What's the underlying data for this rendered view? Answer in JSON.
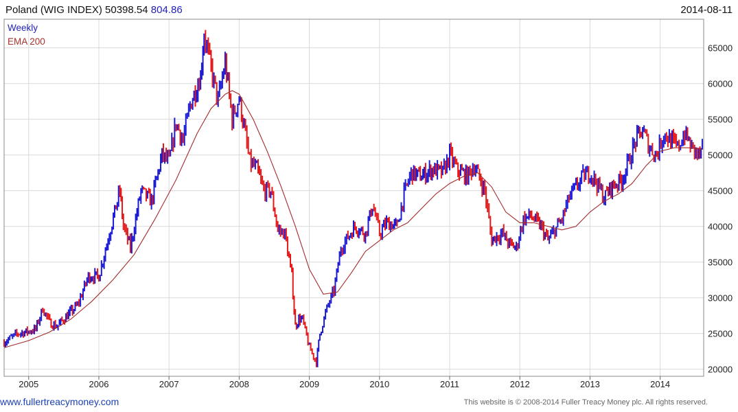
{
  "header": {
    "title": "Poland (WIG INDEX) 50398.54",
    "change": "804.86",
    "date": "2014-08-11"
  },
  "legend": {
    "weekly": "Weekly",
    "ema": "EMA 200"
  },
  "footer": {
    "link": "www.fullertreacymoney.com",
    "copyright": "This website is © 2008-2014 Fuller Treacy Money plc. All rights reserved."
  },
  "colors": {
    "up": "#1a1ad6",
    "down": "#e41818",
    "ema": "#a52a2a",
    "grid": "#d9d9d9",
    "frame": "#888888"
  },
  "chart_data": {
    "type": "line",
    "title": "Poland (WIG INDEX) 50398.54",
    "xlabel": "",
    "ylabel": "",
    "x_range": [
      2004.65,
      2014.62
    ],
    "ylim": [
      19000,
      69000
    ],
    "y_ticks": [
      20000,
      25000,
      30000,
      35000,
      40000,
      45000,
      50000,
      55000,
      60000,
      65000
    ],
    "x_ticks": [
      "2005",
      "2006",
      "2007",
      "2008",
      "2009",
      "2010",
      "2011",
      "2012",
      "2013",
      "2014"
    ],
    "x_tick_values": [
      2005,
      2006,
      2007,
      2008,
      2009,
      2010,
      2011,
      2012,
      2013,
      2014
    ],
    "grid": true,
    "legend_position": "top-left",
    "series": [
      {
        "name": "Weekly",
        "style": "bar",
        "x": [
          2004.65,
          2004.85,
          2005.0,
          2005.1,
          2005.2,
          2005.3,
          2005.4,
          2005.55,
          2005.7,
          2005.85,
          2006.0,
          2006.15,
          2006.3,
          2006.35,
          2006.45,
          2006.6,
          2006.75,
          2006.9,
          2007.0,
          2007.1,
          2007.2,
          2007.3,
          2007.45,
          2007.5,
          2007.6,
          2007.7,
          2007.8,
          2007.9,
          2008.0,
          2008.05,
          2008.15,
          2008.25,
          2008.35,
          2008.45,
          2008.55,
          2008.65,
          2008.75,
          2008.8,
          2008.85,
          2008.9,
          2009.0,
          2009.1,
          2009.15,
          2009.25,
          2009.35,
          2009.45,
          2009.55,
          2009.65,
          2009.8,
          2009.9,
          2010.0,
          2010.1,
          2010.25,
          2010.35,
          2010.45,
          2010.6,
          2010.75,
          2010.9,
          2011.0,
          2011.1,
          2011.25,
          2011.35,
          2011.5,
          2011.6,
          2011.65,
          2011.75,
          2011.85,
          2011.95,
          2012.05,
          2012.15,
          2012.3,
          2012.4,
          2012.5,
          2012.6,
          2012.7,
          2012.8,
          2012.9,
          2013.0,
          2013.1,
          2013.2,
          2013.3,
          2013.45,
          2013.55,
          2013.65,
          2013.75,
          2013.85,
          2013.95,
          2014.05,
          2014.15,
          2014.25,
          2014.35,
          2014.45,
          2014.55,
          2014.6
        ],
        "values": [
          23800,
          25000,
          25300,
          25600,
          28500,
          26500,
          26000,
          27500,
          29000,
          33000,
          33000,
          39000,
          45000,
          40000,
          37000,
          45000,
          43500,
          50000,
          49000,
          54500,
          52000,
          57000,
          61000,
          67000,
          62000,
          57500,
          63000,
          55000,
          58000,
          55000,
          49000,
          48000,
          45000,
          45000,
          39500,
          39000,
          33000,
          26000,
          27000,
          27000,
          23000,
          21000,
          25000,
          28500,
          31000,
          37000,
          38500,
          40000,
          39000,
          43000,
          39000,
          40500,
          40000,
          44500,
          47500,
          47000,
          48000,
          47500,
          50000,
          48000,
          47000,
          48500,
          45000,
          38000,
          38500,
          39000,
          37500,
          37000,
          41000,
          41500,
          40000,
          38000,
          39500,
          41000,
          44000,
          45500,
          47000,
          47500,
          46000,
          44000,
          45500,
          46500,
          49000,
          52000,
          53500,
          51000,
          50000,
          53000,
          52000,
          51000,
          53000,
          51000,
          50000,
          50398.54
        ]
      },
      {
        "name": "EMA 200",
        "style": "line",
        "x": [
          2004.65,
          2005.0,
          2005.3,
          2005.6,
          2005.9,
          2006.2,
          2006.5,
          2006.8,
          2007.1,
          2007.4,
          2007.6,
          2007.8,
          2007.9,
          2008.0,
          2008.2,
          2008.4,
          2008.6,
          2008.8,
          2009.0,
          2009.2,
          2009.4,
          2009.6,
          2009.8,
          2010.0,
          2010.2,
          2010.4,
          2010.6,
          2010.8,
          2011.0,
          2011.2,
          2011.4,
          2011.6,
          2011.8,
          2012.0,
          2012.2,
          2012.4,
          2012.6,
          2012.8,
          2013.0,
          2013.2,
          2013.4,
          2013.6,
          2013.8,
          2014.0,
          2014.2,
          2014.4,
          2014.6
        ],
        "values": [
          23000,
          24000,
          25200,
          27000,
          29500,
          32500,
          36000,
          41000,
          46500,
          53000,
          56500,
          58500,
          59000,
          58500,
          55000,
          50500,
          45500,
          40000,
          34000,
          30500,
          30800,
          33500,
          36500,
          38000,
          39500,
          40500,
          42500,
          44500,
          46000,
          47000,
          47500,
          45500,
          42000,
          40500,
          40500,
          40000,
          39500,
          40000,
          42000,
          43500,
          44500,
          46000,
          48500,
          50500,
          51000,
          51000,
          50800
        ]
      }
    ]
  }
}
